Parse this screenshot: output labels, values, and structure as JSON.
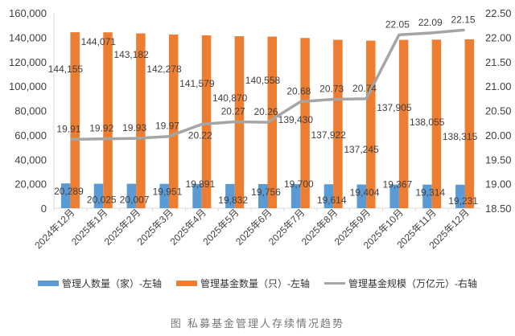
{
  "chart_data": {
    "type": "bar+line",
    "title": "",
    "caption": "图    私募基金管理人存续情况趋势",
    "categories": [
      "2024年12月",
      "2025年1月",
      "2025年2月",
      "2025年3月",
      "2025年4月",
      "2025年5月",
      "2025年6月",
      "2025年7月",
      "2025年8月",
      "2025年9月",
      "2025年10月",
      "2025年11月",
      "2025年12月"
    ],
    "left_axis": {
      "range": [
        0,
        160000
      ],
      "ticks": [
        "0",
        "20,000",
        "40,000",
        "60,000",
        "80,000",
        "100,000",
        "120,000",
        "140,000",
        "160,000"
      ]
    },
    "right_axis": {
      "range": [
        18.5,
        22.5
      ],
      "ticks": [
        "18.50",
        "19.00",
        "19.50",
        "20.00",
        "20.50",
        "21.00",
        "21.50",
        "22.00",
        "22.50"
      ]
    },
    "series": [
      {
        "name": "管理人数量（家）-左轴",
        "type": "bar",
        "axis": "left",
        "color": "#5B9BD5",
        "values": [
          20289,
          20025,
          20007,
          19951,
          19891,
          19832,
          19756,
          19700,
          19614,
          19404,
          19367,
          19314,
          19231
        ],
        "labels": [
          "20,289",
          "20,025",
          "20,007",
          "19,951",
          "19,891",
          "19,832",
          "19,756",
          "19,700",
          "19,614",
          "19,404",
          "19,367",
          "19,314",
          "19,231"
        ]
      },
      {
        "name": "管理基金数量（只）-左轴",
        "type": "bar",
        "axis": "left",
        "color": "#ED7D31",
        "values": [
          144155,
          144071,
          143182,
          142278,
          141579,
          140870,
          140558,
          139430,
          137922,
          137245,
          137905,
          138055,
          138315
        ],
        "labels": [
          "144,155",
          "144,071",
          "143,182",
          "142,278",
          "141,579",
          "140,870",
          "140,558",
          "139,430",
          "137,922",
          "137,245",
          "137,905",
          "138,055",
          "138,315"
        ]
      },
      {
        "name": "管理基金规模（万亿元）-右轴",
        "type": "line",
        "axis": "right",
        "color": "#A5A5A5",
        "values": [
          19.91,
          19.92,
          19.93,
          19.97,
          20.22,
          20.27,
          20.26,
          20.68,
          20.73,
          20.74,
          22.05,
          22.09,
          22.15
        ],
        "labels": [
          "19.91",
          "19.92",
          "19.93",
          "19.97",
          "20.22",
          "20.27",
          "20.26",
          "20.68",
          "20.73",
          "20.74",
          "22.05",
          "22.09",
          "22.15"
        ]
      }
    ],
    "grid": false,
    "legend": "bottom"
  }
}
